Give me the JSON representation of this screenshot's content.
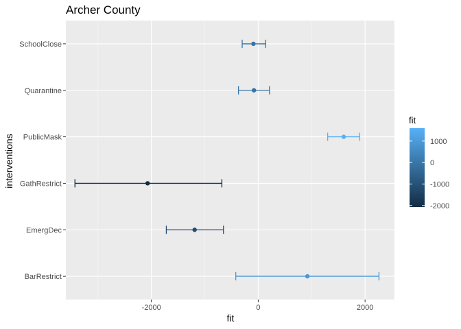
{
  "chart_data": {
    "type": "scatter",
    "title": "Archer County",
    "xlabel": "fit",
    "ylabel": "interventions",
    "xlim": [
      -3600,
      2550
    ],
    "x_ticks": [
      -2000,
      0,
      2000
    ],
    "x_tick_labels": [
      "-2000",
      "0",
      "2000"
    ],
    "categories": [
      "BarRestrict",
      "EmergDec",
      "GathRestrict",
      "PublicMask",
      "Quarantine",
      "SchoolClose"
    ],
    "series": [
      {
        "values": [
          {
            "category": "BarRestrict",
            "fit": 920,
            "lower": -420,
            "upper": 2260
          },
          {
            "category": "EmergDec",
            "fit": -1190,
            "lower": -1720,
            "upper": -650
          },
          {
            "category": "GathRestrict",
            "fit": -2070,
            "lower": -3430,
            "upper": -680
          },
          {
            "category": "PublicMask",
            "fit": 1600,
            "lower": 1300,
            "upper": 1900
          },
          {
            "category": "Quarantine",
            "fit": -80,
            "lower": -370,
            "upper": 210
          },
          {
            "category": "SchoolClose",
            "fit": -90,
            "lower": -300,
            "upper": 140
          }
        ]
      }
    ],
    "legend": {
      "title": "fit",
      "position": "right",
      "range": [
        -2070,
        1600
      ],
      "ticks": [
        1000,
        0,
        -1000,
        -2000
      ],
      "tick_labels": [
        "1000",
        "0",
        "-1000",
        "-2000"
      ],
      "color_low": "#132b43",
      "color_high": "#56b1f7"
    },
    "grid": true,
    "colors": {
      "panel_background": "#ebebeb",
      "grid_major": "#ffffff",
      "grid_minor": "#f5f5f5"
    }
  }
}
